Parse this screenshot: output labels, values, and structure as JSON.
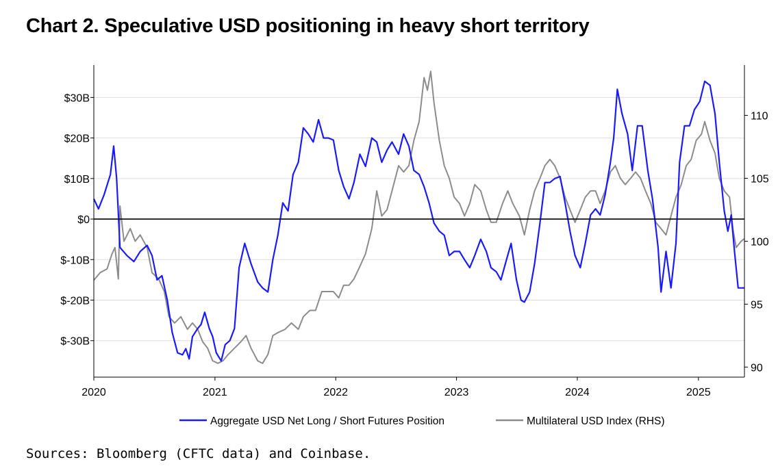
{
  "title": "Chart 2. Speculative USD positioning in heavy short territory",
  "source": "Sources: Bloomberg (CFTC data) and Coinbase.",
  "chart_data": {
    "type": "line",
    "title": "Chart 2. Speculative USD positioning in heavy short territory",
    "x_ticks": [
      "2020",
      "2021",
      "2022",
      "2023",
      "2024",
      "2025"
    ],
    "xlim": [
      "2020-01-01",
      "2025-05-20"
    ],
    "y_left": {
      "ticks": [
        30,
        20,
        10,
        0,
        -10,
        -20,
        -30
      ],
      "tick_labels": [
        "$30B",
        "$20B",
        "$10B",
        "$0",
        "$-10B",
        "$-20B",
        "$-30B"
      ],
      "ylim": [
        -39,
        38
      ]
    },
    "y_right": {
      "ticks": [
        110,
        105,
        100,
        95,
        90
      ],
      "tick_labels": [
        "110",
        "105",
        "100",
        "95",
        "90"
      ],
      "ylim": [
        89.2,
        114
      ]
    },
    "zero_line": 0,
    "grid": "horizontal",
    "legend_position": "bottom",
    "series": [
      {
        "name": "Aggregate USD Net Long / Short Futures Position",
        "axis": "left",
        "color": "#1a1aff",
        "points": [
          [
            "2020-01-01",
            5
          ],
          [
            "2020-01-15",
            2.5
          ],
          [
            "2020-02-01",
            6
          ],
          [
            "2020-02-20",
            11
          ],
          [
            "2020-03-01",
            18
          ],
          [
            "2020-03-10",
            10
          ],
          [
            "2020-03-20",
            -7
          ],
          [
            "2020-04-10",
            -9
          ],
          [
            "2020-05-01",
            -10.5
          ],
          [
            "2020-05-20",
            -8
          ],
          [
            "2020-06-10",
            -6.5
          ],
          [
            "2020-06-25",
            -9
          ],
          [
            "2020-07-10",
            -15
          ],
          [
            "2020-07-25",
            -14
          ],
          [
            "2020-08-10",
            -20
          ],
          [
            "2020-08-25",
            -28
          ],
          [
            "2020-09-10",
            -33
          ],
          [
            "2020-09-25",
            -33.5
          ],
          [
            "2020-10-05",
            -32
          ],
          [
            "2020-10-15",
            -34.5
          ],
          [
            "2020-10-25",
            -29
          ],
          [
            "2020-11-10",
            -27
          ],
          [
            "2020-11-20",
            -26
          ],
          [
            "2020-12-01",
            -23
          ],
          [
            "2020-12-15",
            -27
          ],
          [
            "2020-12-25",
            -29
          ],
          [
            "2021-01-05",
            -33
          ],
          [
            "2021-01-20",
            -35
          ],
          [
            "2021-02-01",
            -31
          ],
          [
            "2021-02-15",
            -30
          ],
          [
            "2021-03-01",
            -27
          ],
          [
            "2021-03-15",
            -12
          ],
          [
            "2021-04-01",
            -6
          ],
          [
            "2021-04-20",
            -11
          ],
          [
            "2021-05-10",
            -15.5
          ],
          [
            "2021-05-25",
            -17
          ],
          [
            "2021-06-10",
            -18
          ],
          [
            "2021-06-25",
            -10
          ],
          [
            "2021-07-10",
            -4
          ],
          [
            "2021-07-25",
            4
          ],
          [
            "2021-08-10",
            2
          ],
          [
            "2021-08-25",
            11
          ],
          [
            "2021-09-10",
            14
          ],
          [
            "2021-09-25",
            22.5
          ],
          [
            "2021-10-10",
            21
          ],
          [
            "2021-10-25",
            19
          ],
          [
            "2021-11-10",
            24.5
          ],
          [
            "2021-11-25",
            20
          ],
          [
            "2021-12-10",
            20
          ],
          [
            "2021-12-25",
            19.5
          ],
          [
            "2022-01-10",
            12
          ],
          [
            "2022-01-25",
            8
          ],
          [
            "2022-02-10",
            5
          ],
          [
            "2022-02-25",
            9
          ],
          [
            "2022-03-15",
            16
          ],
          [
            "2022-04-01",
            13
          ],
          [
            "2022-04-20",
            20
          ],
          [
            "2022-05-05",
            19
          ],
          [
            "2022-05-20",
            14
          ],
          [
            "2022-06-05",
            17
          ],
          [
            "2022-06-20",
            19
          ],
          [
            "2022-07-10",
            16
          ],
          [
            "2022-07-25",
            21
          ],
          [
            "2022-08-10",
            18
          ],
          [
            "2022-08-25",
            12
          ],
          [
            "2022-09-10",
            11
          ],
          [
            "2022-09-25",
            8
          ],
          [
            "2022-10-10",
            4
          ],
          [
            "2022-10-25",
            -1
          ],
          [
            "2022-11-10",
            -3
          ],
          [
            "2022-11-25",
            -4
          ],
          [
            "2022-12-10",
            -9
          ],
          [
            "2022-12-25",
            -8
          ],
          [
            "2023-01-10",
            -8
          ],
          [
            "2023-01-25",
            -10
          ],
          [
            "2023-02-10",
            -12
          ],
          [
            "2023-02-25",
            -9
          ],
          [
            "2023-03-15",
            -5
          ],
          [
            "2023-04-01",
            -8
          ],
          [
            "2023-04-15",
            -12
          ],
          [
            "2023-05-01",
            -13
          ],
          [
            "2023-05-15",
            -15
          ],
          [
            "2023-06-01",
            -10
          ],
          [
            "2023-06-15",
            -6
          ],
          [
            "2023-07-01",
            -15
          ],
          [
            "2023-07-15",
            -20
          ],
          [
            "2023-07-25",
            -20.5
          ],
          [
            "2023-08-10",
            -18
          ],
          [
            "2023-08-25",
            -11
          ],
          [
            "2023-09-10",
            -1
          ],
          [
            "2023-09-25",
            9
          ],
          [
            "2023-10-10",
            9
          ],
          [
            "2023-10-25",
            10
          ],
          [
            "2023-11-10",
            10.5
          ],
          [
            "2023-11-25",
            4
          ],
          [
            "2023-12-10",
            -3
          ],
          [
            "2023-12-25",
            -9
          ],
          [
            "2024-01-10",
            -12
          ],
          [
            "2024-01-25",
            -6
          ],
          [
            "2024-02-10",
            1
          ],
          [
            "2024-02-25",
            2.5
          ],
          [
            "2024-03-10",
            1
          ],
          [
            "2024-03-25",
            6
          ],
          [
            "2024-04-10",
            14
          ],
          [
            "2024-04-20",
            20
          ],
          [
            "2024-05-01",
            32
          ],
          [
            "2024-05-15",
            26
          ],
          [
            "2024-06-01",
            21
          ],
          [
            "2024-06-15",
            12
          ],
          [
            "2024-07-01",
            23
          ],
          [
            "2024-07-15",
            23
          ],
          [
            "2024-08-01",
            12
          ],
          [
            "2024-08-15",
            5
          ],
          [
            "2024-09-01",
            -7
          ],
          [
            "2024-09-10",
            -18
          ],
          [
            "2024-09-25",
            -8
          ],
          [
            "2024-10-10",
            -17
          ],
          [
            "2024-10-25",
            -6
          ],
          [
            "2024-11-05",
            14
          ],
          [
            "2024-11-20",
            23
          ],
          [
            "2024-12-05",
            23
          ],
          [
            "2024-12-20",
            27
          ],
          [
            "2025-01-05",
            29
          ],
          [
            "2025-01-20",
            34
          ],
          [
            "2025-02-05",
            33
          ],
          [
            "2025-02-20",
            26
          ],
          [
            "2025-03-05",
            14
          ],
          [
            "2025-03-20",
            2
          ],
          [
            "2025-03-31",
            -3
          ],
          [
            "2025-04-10",
            1
          ],
          [
            "2025-04-20",
            -8
          ],
          [
            "2025-05-01",
            -17
          ],
          [
            "2025-05-20",
            -17
          ]
        ]
      },
      {
        "name": "Multilateral USD Index (RHS)",
        "axis": "right",
        "color": "#8c8c8c",
        "points": [
          [
            "2020-01-01",
            96.9
          ],
          [
            "2020-01-20",
            97.5
          ],
          [
            "2020-02-10",
            97.8
          ],
          [
            "2020-02-25",
            99
          ],
          [
            "2020-03-05",
            99.5
          ],
          [
            "2020-03-15",
            97
          ],
          [
            "2020-03-20",
            102.8
          ],
          [
            "2020-04-01",
            100
          ],
          [
            "2020-04-20",
            101
          ],
          [
            "2020-05-05",
            100
          ],
          [
            "2020-05-20",
            100.5
          ],
          [
            "2020-06-10",
            99.5
          ],
          [
            "2020-06-25",
            97.5
          ],
          [
            "2020-07-15",
            97
          ],
          [
            "2020-08-01",
            96
          ],
          [
            "2020-08-15",
            94
          ],
          [
            "2020-09-01",
            93.5
          ],
          [
            "2020-09-20",
            94
          ],
          [
            "2020-10-10",
            93
          ],
          [
            "2020-10-25",
            93.5
          ],
          [
            "2020-11-10",
            93
          ],
          [
            "2020-11-25",
            92
          ],
          [
            "2020-12-10",
            91.5
          ],
          [
            "2020-12-25",
            90.5
          ],
          [
            "2021-01-10",
            90.3
          ],
          [
            "2021-01-25",
            90.5
          ],
          [
            "2021-02-10",
            91
          ],
          [
            "2021-03-01",
            91.5
          ],
          [
            "2021-03-20",
            92
          ],
          [
            "2021-04-05",
            92.5
          ],
          [
            "2021-04-20",
            91.5
          ],
          [
            "2021-05-10",
            90.5
          ],
          [
            "2021-05-25",
            90.3
          ],
          [
            "2021-06-10",
            91
          ],
          [
            "2021-06-25",
            92.5
          ],
          [
            "2021-07-15",
            92.8
          ],
          [
            "2021-08-01",
            93
          ],
          [
            "2021-08-20",
            93.5
          ],
          [
            "2021-09-10",
            93
          ],
          [
            "2021-09-25",
            94
          ],
          [
            "2021-10-15",
            94.5
          ],
          [
            "2021-11-01",
            94.5
          ],
          [
            "2021-11-20",
            96
          ],
          [
            "2021-12-10",
            96
          ],
          [
            "2021-12-25",
            96
          ],
          [
            "2022-01-10",
            95.5
          ],
          [
            "2022-01-25",
            96.5
          ],
          [
            "2022-02-10",
            96.5
          ],
          [
            "2022-02-25",
            97
          ],
          [
            "2022-03-15",
            98
          ],
          [
            "2022-04-01",
            99
          ],
          [
            "2022-04-20",
            101
          ],
          [
            "2022-05-05",
            104
          ],
          [
            "2022-05-20",
            102
          ],
          [
            "2022-06-05",
            102.5
          ],
          [
            "2022-06-20",
            104
          ],
          [
            "2022-07-10",
            106
          ],
          [
            "2022-07-25",
            105.5
          ],
          [
            "2022-08-10",
            106
          ],
          [
            "2022-08-25",
            108
          ],
          [
            "2022-09-10",
            109.5
          ],
          [
            "2022-09-25",
            113
          ],
          [
            "2022-10-05",
            112
          ],
          [
            "2022-10-15",
            113.5
          ],
          [
            "2022-10-25",
            111
          ],
          [
            "2022-11-10",
            108
          ],
          [
            "2022-11-25",
            106
          ],
          [
            "2022-12-10",
            105
          ],
          [
            "2022-12-25",
            103.5
          ],
          [
            "2023-01-10",
            103
          ],
          [
            "2023-01-25",
            102
          ],
          [
            "2023-02-10",
            103
          ],
          [
            "2023-02-25",
            104.5
          ],
          [
            "2023-03-15",
            104
          ],
          [
            "2023-04-01",
            102.5
          ],
          [
            "2023-04-15",
            101.5
          ],
          [
            "2023-05-01",
            101.5
          ],
          [
            "2023-05-20",
            103
          ],
          [
            "2023-06-05",
            104
          ],
          [
            "2023-06-20",
            103
          ],
          [
            "2023-07-10",
            102
          ],
          [
            "2023-07-25",
            100.5
          ],
          [
            "2023-08-10",
            102.5
          ],
          [
            "2023-08-25",
            104
          ],
          [
            "2023-09-10",
            105
          ],
          [
            "2023-09-25",
            106
          ],
          [
            "2023-10-10",
            106.5
          ],
          [
            "2023-10-25",
            106
          ],
          [
            "2023-11-10",
            105
          ],
          [
            "2023-11-25",
            103.5
          ],
          [
            "2023-12-10",
            102.5
          ],
          [
            "2023-12-25",
            101.5
          ],
          [
            "2024-01-10",
            102.5
          ],
          [
            "2024-01-25",
            103.5
          ],
          [
            "2024-02-10",
            104
          ],
          [
            "2024-02-25",
            104
          ],
          [
            "2024-03-10",
            103
          ],
          [
            "2024-03-25",
            104
          ],
          [
            "2024-04-10",
            105.5
          ],
          [
            "2024-04-25",
            106
          ],
          [
            "2024-05-10",
            105
          ],
          [
            "2024-05-25",
            104.5
          ],
          [
            "2024-06-10",
            105
          ],
          [
            "2024-06-25",
            105.5
          ],
          [
            "2024-07-10",
            105
          ],
          [
            "2024-07-25",
            104
          ],
          [
            "2024-08-10",
            103
          ],
          [
            "2024-08-25",
            101.5
          ],
          [
            "2024-09-10",
            101
          ],
          [
            "2024-09-25",
            100.5
          ],
          [
            "2024-10-10",
            102
          ],
          [
            "2024-10-25",
            103.5
          ],
          [
            "2024-11-10",
            104.5
          ],
          [
            "2024-11-25",
            106
          ],
          [
            "2024-12-10",
            106.5
          ],
          [
            "2024-12-25",
            108
          ],
          [
            "2025-01-10",
            108.5
          ],
          [
            "2025-01-20",
            109.5
          ],
          [
            "2025-02-05",
            108
          ],
          [
            "2025-02-20",
            107
          ],
          [
            "2025-03-05",
            105
          ],
          [
            "2025-03-20",
            104
          ],
          [
            "2025-04-05",
            103.5
          ],
          [
            "2025-04-15",
            101
          ],
          [
            "2025-04-25",
            99.5
          ],
          [
            "2025-05-10",
            100
          ],
          [
            "2025-05-20",
            100.2
          ]
        ]
      }
    ]
  }
}
